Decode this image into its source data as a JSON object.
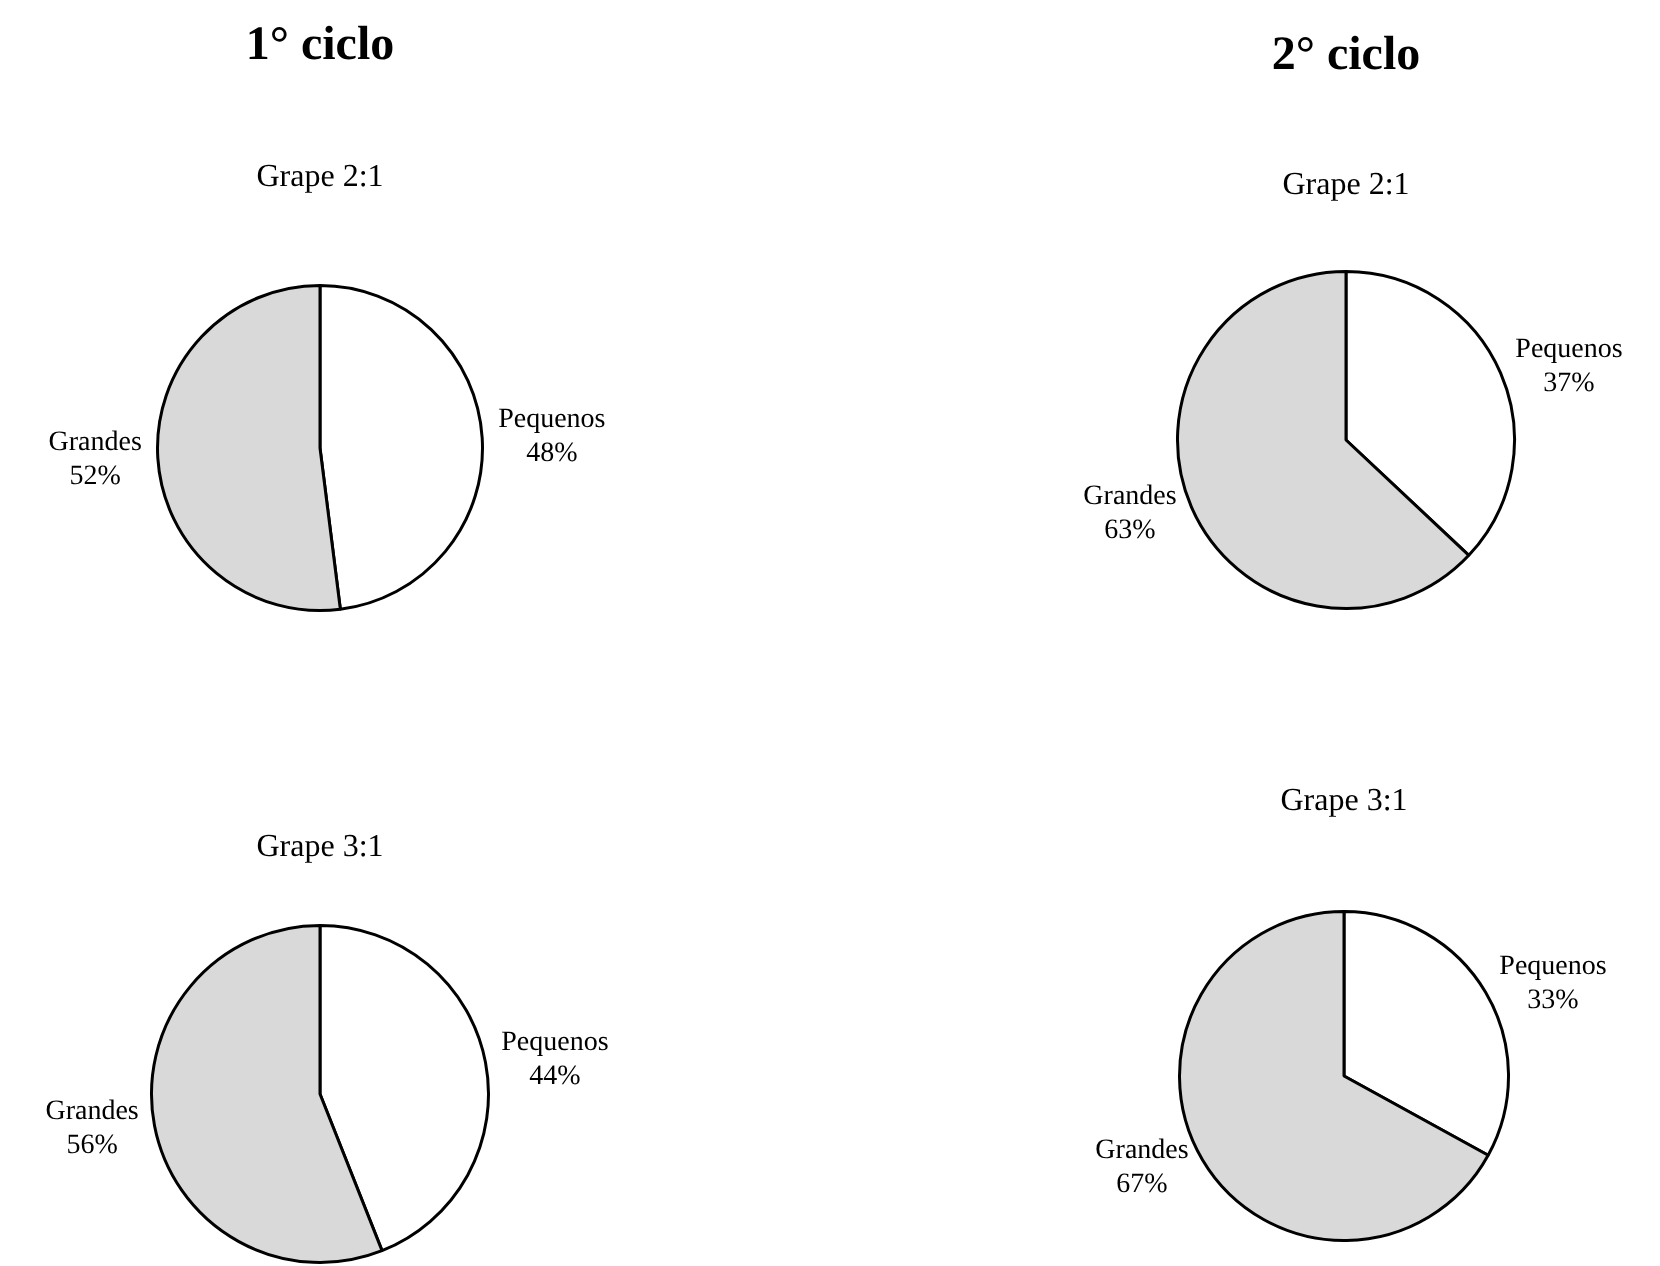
{
  "chart_data": [
    {
      "type": "pie",
      "title": "1° ciclo",
      "subtitle": "Grape 2:1",
      "categories": [
        "Pequenos",
        "Grandes"
      ],
      "values": [
        48,
        52
      ],
      "value_labels": [
        "48%",
        "52%"
      ],
      "colors": [
        "#ffffff",
        "#d9d9d9"
      ],
      "legend": false
    },
    {
      "type": "pie",
      "title": "2° ciclo",
      "subtitle": "Grape 2:1",
      "categories": [
        "Pequenos",
        "Grandes"
      ],
      "values": [
        37,
        63
      ],
      "value_labels": [
        "37%",
        "63%"
      ],
      "colors": [
        "#ffffff",
        "#d9d9d9"
      ],
      "legend": false
    },
    {
      "type": "pie",
      "subtitle": "Grape 3:1",
      "categories": [
        "Pequenos",
        "Grandes"
      ],
      "values": [
        44,
        56
      ],
      "value_labels": [
        "44%",
        "56%"
      ],
      "colors": [
        "#ffffff",
        "#d9d9d9"
      ],
      "legend": false
    },
    {
      "type": "pie",
      "subtitle": "Grape 3:1",
      "categories": [
        "Pequenos",
        "Grandes"
      ],
      "values": [
        33,
        67
      ],
      "value_labels": [
        "33%",
        "67%"
      ],
      "colors": [
        "#ffffff",
        "#d9d9d9"
      ],
      "legend": false
    }
  ]
}
